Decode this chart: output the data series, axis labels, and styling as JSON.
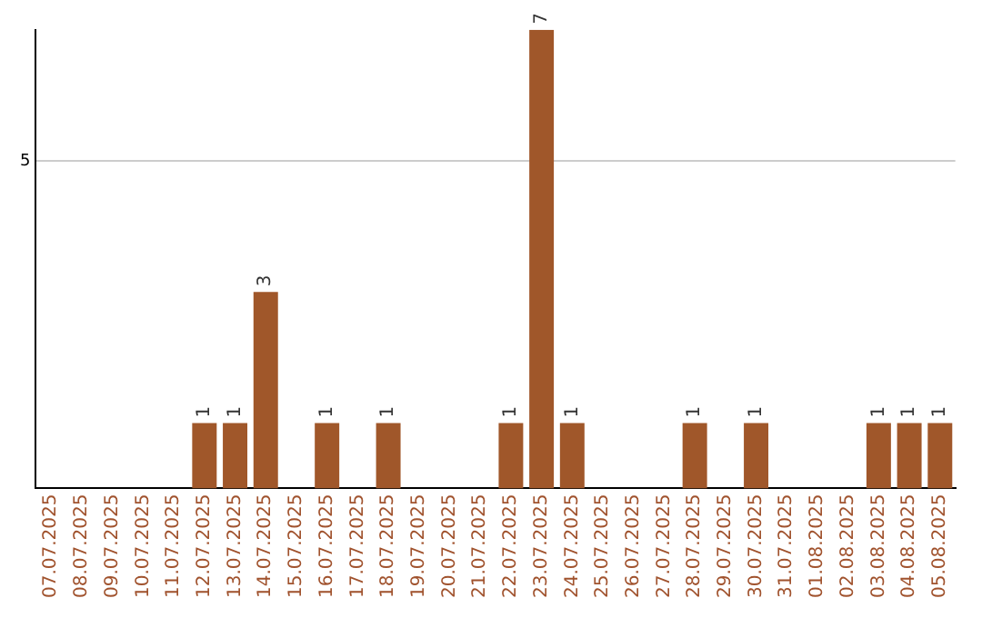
{
  "chart_data": {
    "type": "bar",
    "categories": [
      "07.07.2025",
      "08.07.2025",
      "09.07.2025",
      "10.07.2025",
      "11.07.2025",
      "12.07.2025",
      "13.07.2025",
      "14.07.2025",
      "15.07.2025",
      "16.07.2025",
      "17.07.2025",
      "18.07.2025",
      "19.07.2025",
      "20.07.2025",
      "21.07.2025",
      "22.07.2025",
      "23.07.2025",
      "24.07.2025",
      "25.07.2025",
      "26.07.2025",
      "27.07.2025",
      "28.07.2025",
      "29.07.2025",
      "30.07.2025",
      "31.07.2025",
      "01.08.2025",
      "02.08.2025",
      "03.08.2025",
      "04.08.2025",
      "05.08.2025"
    ],
    "values": [
      0,
      0,
      0,
      0,
      0,
      1,
      1,
      3,
      0,
      1,
      0,
      1,
      0,
      0,
      0,
      1,
      7,
      1,
      0,
      0,
      0,
      1,
      0,
      1,
      0,
      0,
      0,
      1,
      1,
      1
    ],
    "value_labels": [
      null,
      null,
      null,
      null,
      null,
      "1",
      "1",
      "3",
      null,
      "1",
      null,
      "1",
      null,
      null,
      null,
      "1",
      "7",
      "1",
      null,
      null,
      null,
      "1",
      null,
      "1",
      null,
      null,
      null,
      "1",
      "1",
      "1"
    ],
    "color": "#a0572a",
    "ylim": [
      0,
      7
    ],
    "yticks": [
      5
    ],
    "grid": "y",
    "legend": false
  }
}
